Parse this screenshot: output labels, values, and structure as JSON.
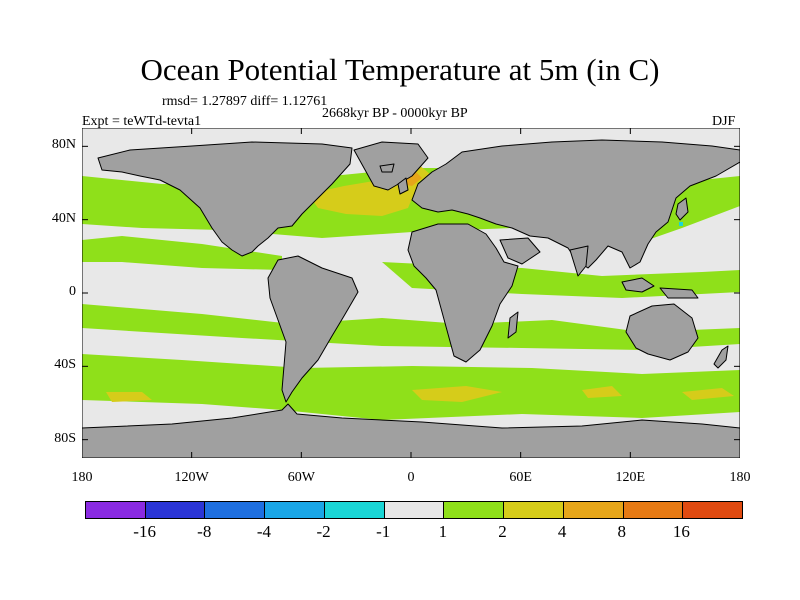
{
  "title": "Ocean Potential Temperature at 5m (in C)",
  "stats": "rmsd= 1.27897  diff= 1.12761",
  "period": "2668kyr BP - 0000kyr BP",
  "experiment": "Expt = teWTd-tevta1",
  "season": "DJF",
  "map": {
    "projection": "cylindrical-equidistant",
    "lon_range": [
      -180,
      180
    ],
    "lat_range": [
      -90,
      90
    ],
    "land_color": "#a0a0a0",
    "lat_ticks": [
      {
        "value": 80,
        "label": "80N"
      },
      {
        "value": 40,
        "label": "40N"
      },
      {
        "value": 0,
        "label": "0"
      },
      {
        "value": -40,
        "label": "40S"
      },
      {
        "value": -80,
        "label": "80S"
      }
    ],
    "lon_ticks": [
      {
        "value": -180,
        "label": "180"
      },
      {
        "value": -120,
        "label": "120W"
      },
      {
        "value": -60,
        "label": "60W"
      },
      {
        "value": 0,
        "label": "0"
      },
      {
        "value": 60,
        "label": "60E"
      },
      {
        "value": 120,
        "label": "120E"
      },
      {
        "value": 180,
        "label": "180"
      }
    ]
  },
  "colorbar": {
    "colors": [
      "#8a2be2",
      "#2b35d6",
      "#1e6fe0",
      "#1aa6e6",
      "#1ad6d6",
      "#e6e6e6",
      "#8fe01a",
      "#d6cc1a",
      "#e6a61a",
      "#e67a14",
      "#e04a10"
    ],
    "labels": [
      "-16",
      "-8",
      "-4",
      "-2",
      "-1",
      "1",
      "2",
      "4",
      "8",
      "16"
    ]
  }
}
